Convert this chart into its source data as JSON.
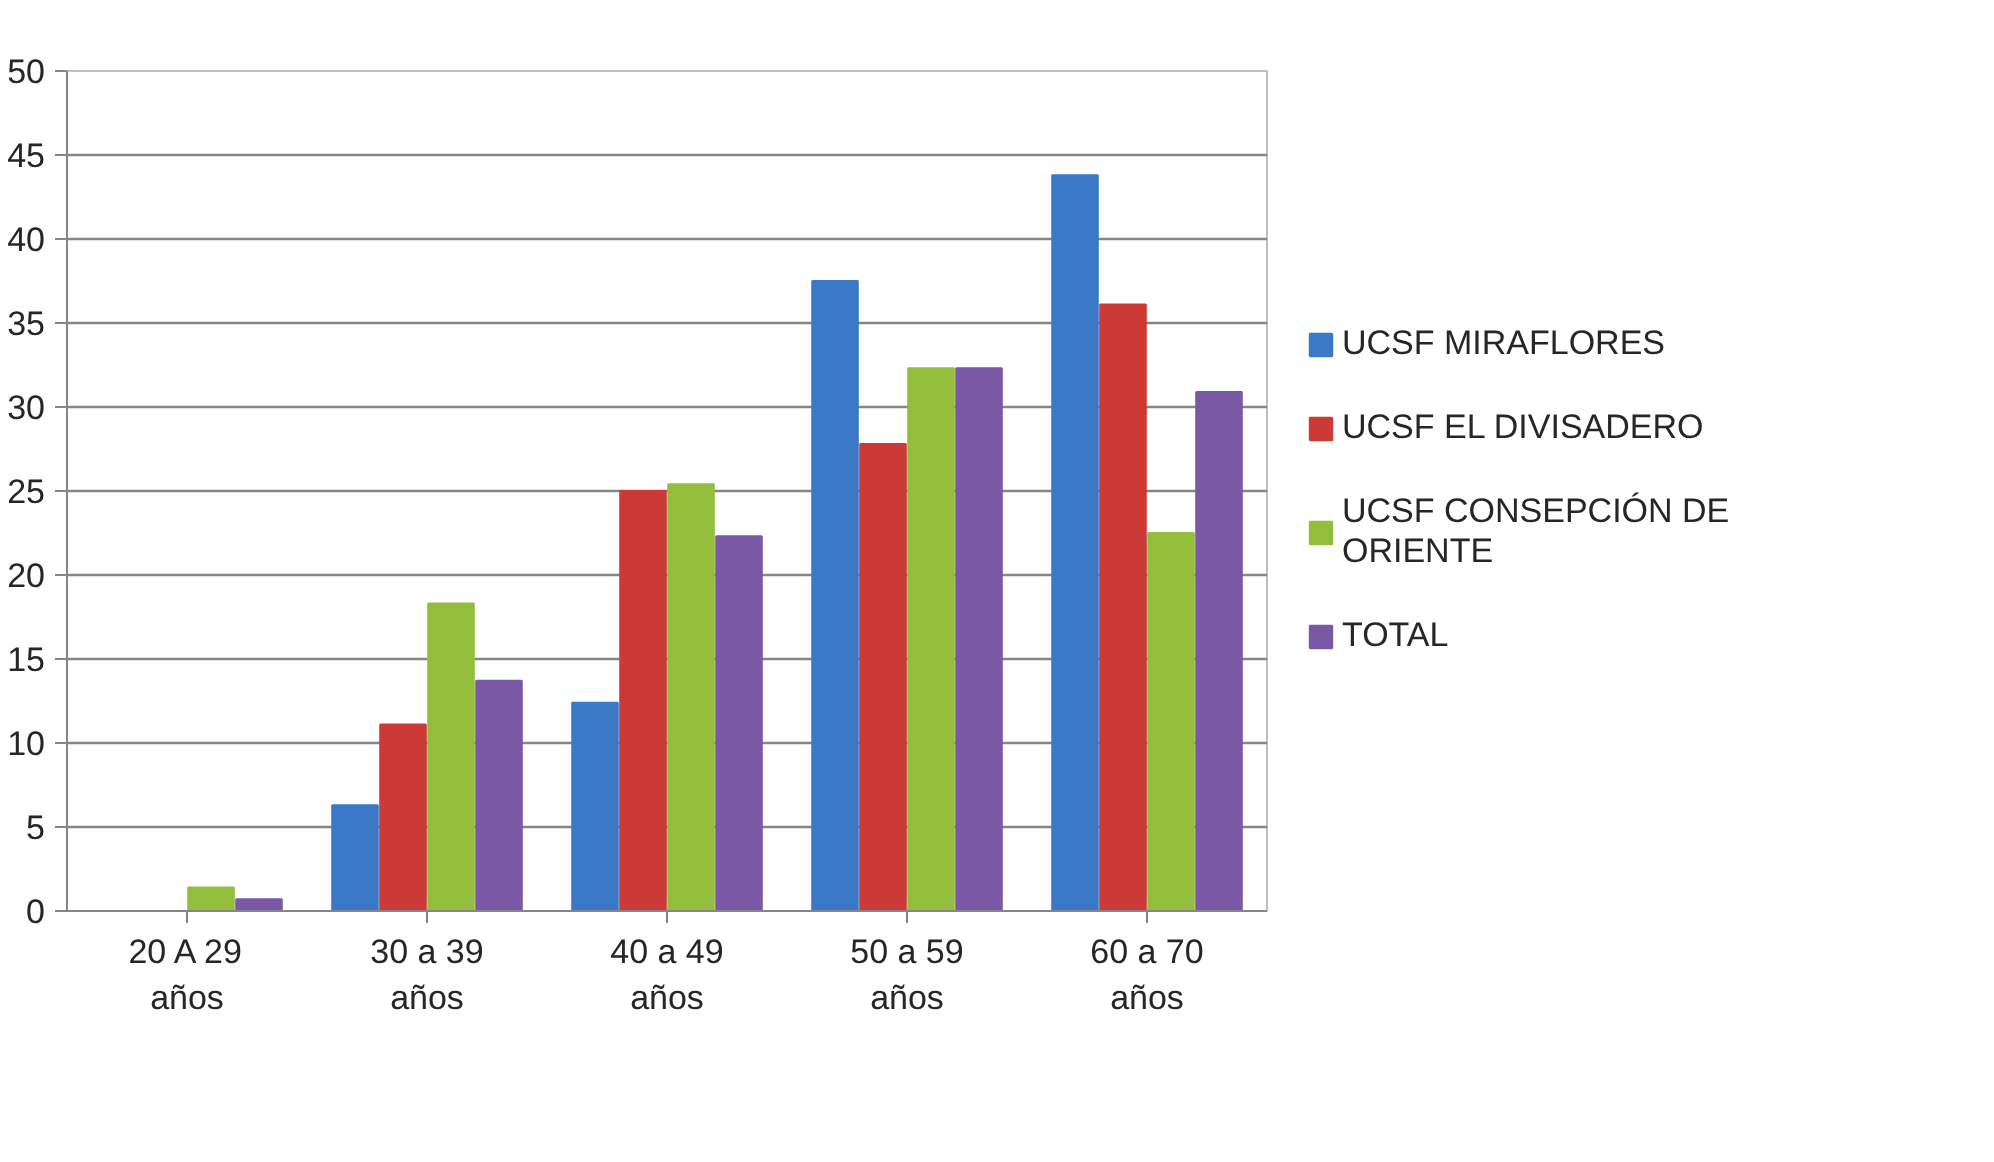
{
  "chart_data": {
    "type": "bar",
    "categories": [
      "20 A 29 años",
      "30 a 39 años",
      "40 a 49 años",
      "50 a 59 años",
      "60 a 70 años"
    ],
    "series": [
      {
        "name": "UCSF MIRAFLORES",
        "color": "#3b78c8",
        "values": [
          0,
          6.3,
          12.4,
          37.5,
          43.8
        ]
      },
      {
        "name": "UCSF EL DIVISADERO",
        "color": "#cc3a37",
        "values": [
          0,
          11.1,
          25.0,
          27.8,
          36.1
        ]
      },
      {
        "name": "UCSF CONSEPCIÓN DE ORIENTE",
        "color": "#92be3c",
        "values": [
          1.4,
          18.3,
          25.4,
          32.3,
          22.5
        ]
      },
      {
        "name": "TOTAL",
        "color": "#7b58a6",
        "values": [
          0.7,
          13.7,
          22.3,
          32.3,
          30.9
        ]
      }
    ],
    "ylim": [
      0,
      50
    ],
    "yticks": [
      0,
      5,
      10,
      15,
      20,
      25,
      30,
      35,
      40,
      45,
      50
    ],
    "grid": "y",
    "legend": "right"
  }
}
